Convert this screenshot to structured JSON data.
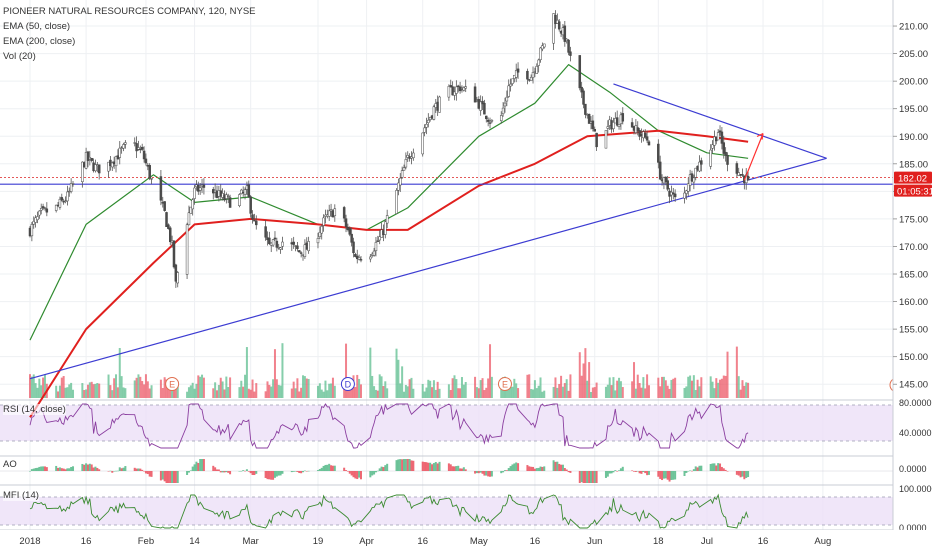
{
  "header": {
    "title": "PIONEER NATURAL RESOURCES COMPANY, 120, NYSE",
    "indicators": [
      "EMA (50, close)",
      "EMA (200, close)",
      "Vol (20)"
    ]
  },
  "subpanes": {
    "rsi_label": "RSI (14, close)",
    "ao_label": "AO",
    "mfi_label": "MFI (14)"
  },
  "last_price": {
    "value": "182.02",
    "countdown": "01:05:31"
  },
  "event_markers": [
    {
      "letter": "E",
      "date": "2018-02-08"
    },
    {
      "letter": "D",
      "date": "2018-03-27"
    },
    {
      "letter": "E",
      "date": "2018-05-08"
    }
  ],
  "colors": {
    "up": "#53b987",
    "down": "#eb4d5c",
    "candle_body": "#4b4b4b",
    "ema50": "#2f8b2f",
    "ema200": "#e0201e",
    "trendline": "#3c3cd2",
    "hline_red": "#e04040",
    "rsi_line": "#8b3fa0",
    "pane_fill": "#ece0f8",
    "price_tag": "#e0201e"
  },
  "chart_data": [
    {
      "type": "candlestick",
      "title": "PIONEER NATURAL RESOURCES COMPANY, 120, NYSE",
      "xaxis": {
        "labels": [
          "2018",
          "16",
          "Feb",
          "14",
          "Mar",
          "19",
          "Apr",
          "16",
          "May",
          "16",
          "Jun",
          "18",
          "Jul",
          "16",
          "Aug"
        ],
        "dates": [
          "2018-01-01",
          "2018-01-16",
          "2018-02-01",
          "2018-02-14",
          "2018-03-01",
          "2018-03-19",
          "2018-04-01",
          "2018-04-16",
          "2018-05-01",
          "2018-05-16",
          "2018-06-01",
          "2018-06-18",
          "2018-07-01",
          "2018-07-16",
          "2018-08-01"
        ]
      },
      "yaxis": {
        "ticks": [
          "145.00",
          "150.00",
          "155.00",
          "160.00",
          "165.00",
          "170.00",
          "175.00",
          "180.00",
          "185.00",
          "190.00",
          "195.00",
          "200.00",
          "205.00",
          "210.00"
        ],
        "range": [
          142.5,
          214
        ]
      },
      "price_path": [
        [
          "2018-01-01",
          173
        ],
        [
          "2018-01-04",
          176
        ],
        [
          "2018-01-08",
          177
        ],
        [
          "2018-01-11",
          179
        ],
        [
          "2018-01-13",
          182
        ],
        [
          "2018-01-16",
          186
        ],
        [
          "2018-01-19",
          184
        ],
        [
          "2018-01-22",
          185
        ],
        [
          "2018-01-25",
          187
        ],
        [
          "2018-01-28",
          189
        ],
        [
          "2018-01-31",
          187
        ],
        [
          "2018-02-03",
          181
        ],
        [
          "2018-02-06",
          176
        ],
        [
          "2018-02-08",
          170
        ],
        [
          "2018-02-09",
          163
        ],
        [
          "2018-02-11",
          172
        ],
        [
          "2018-02-14",
          180
        ],
        [
          "2018-02-17",
          181
        ],
        [
          "2018-02-21",
          179
        ],
        [
          "2018-02-24",
          178
        ],
        [
          "2018-02-28",
          180
        ],
        [
          "2018-03-02",
          174
        ],
        [
          "2018-03-06",
          170
        ],
        [
          "2018-03-10",
          171
        ],
        [
          "2018-03-14",
          169
        ],
        [
          "2018-03-17",
          170
        ],
        [
          "2018-03-21",
          175
        ],
        [
          "2018-03-24",
          177
        ],
        [
          "2018-03-27",
          173
        ],
        [
          "2018-03-29",
          168
        ],
        [
          "2018-04-02",
          169
        ],
        [
          "2018-04-05",
          172
        ],
        [
          "2018-04-08",
          178
        ],
        [
          "2018-04-12",
          186
        ],
        [
          "2018-04-16",
          191
        ],
        [
          "2018-04-19",
          195
        ],
        [
          "2018-04-23",
          198
        ],
        [
          "2018-04-26",
          199
        ],
        [
          "2018-04-30",
          197
        ],
        [
          "2018-05-03",
          194
        ],
        [
          "2018-05-06",
          191
        ],
        [
          "2018-05-09",
          199
        ],
        [
          "2018-05-12",
          202
        ],
        [
          "2018-05-15",
          201
        ],
        [
          "2018-05-18",
          206
        ],
        [
          "2018-05-21",
          212
        ],
        [
          "2018-05-24",
          208
        ],
        [
          "2018-05-27",
          200
        ],
        [
          "2018-05-30",
          194
        ],
        [
          "2018-06-02",
          188
        ],
        [
          "2018-06-05",
          192
        ],
        [
          "2018-06-09",
          194
        ],
        [
          "2018-06-12",
          191
        ],
        [
          "2018-06-16",
          189
        ],
        [
          "2018-06-19",
          182
        ],
        [
          "2018-06-21",
          180
        ],
        [
          "2018-06-24",
          177
        ],
        [
          "2018-06-26",
          182
        ],
        [
          "2018-06-29",
          185
        ],
        [
          "2018-07-02",
          188
        ],
        [
          "2018-07-04",
          191
        ],
        [
          "2018-07-06",
          186
        ],
        [
          "2018-07-08",
          185
        ],
        [
          "2018-07-10",
          183
        ],
        [
          "2018-07-12",
          182
        ]
      ],
      "ema50": [
        [
          "2018-01-01",
          153
        ],
        [
          "2018-01-16",
          174
        ],
        [
          "2018-02-03",
          183
        ],
        [
          "2018-02-14",
          178
        ],
        [
          "2018-03-01",
          179
        ],
        [
          "2018-03-19",
          174
        ],
        [
          "2018-04-01",
          173
        ],
        [
          "2018-04-12",
          177
        ],
        [
          "2018-05-01",
          190
        ],
        [
          "2018-05-16",
          196
        ],
        [
          "2018-05-25",
          203
        ],
        [
          "2018-06-05",
          198
        ],
        [
          "2018-06-18",
          191
        ],
        [
          "2018-07-01",
          187
        ],
        [
          "2018-07-12",
          186
        ]
      ],
      "ema200": [
        [
          "2018-01-01",
          139
        ],
        [
          "2018-01-16",
          155
        ],
        [
          "2018-02-03",
          167
        ],
        [
          "2018-02-14",
          174
        ],
        [
          "2018-03-01",
          175
        ],
        [
          "2018-03-19",
          174
        ],
        [
          "2018-04-01",
          173
        ],
        [
          "2018-04-12",
          173
        ],
        [
          "2018-05-01",
          181
        ],
        [
          "2018-05-16",
          185
        ],
        [
          "2018-05-30",
          190
        ],
        [
          "2018-06-18",
          191
        ],
        [
          "2018-07-01",
          190
        ],
        [
          "2018-07-12",
          189
        ]
      ],
      "trendlines": [
        {
          "from": [
            "2018-01-01",
            146
          ],
          "to": [
            "2018-08-02",
            186
          ]
        },
        {
          "from": [
            "2018-06-06",
            199.5
          ],
          "to": [
            "2018-08-02",
            186
          ]
        }
      ],
      "horizontal_lines": [
        182.5,
        181.3
      ],
      "volume": {
        "shown": true
      },
      "rsi": {
        "ticks": [
          "80.0000",
          "40.0000"
        ]
      },
      "ao": {
        "ticks": [
          "0.0000"
        ]
      },
      "mfi": {
        "ticks": [
          "100.0000",
          "0.0000"
        ]
      }
    }
  ]
}
